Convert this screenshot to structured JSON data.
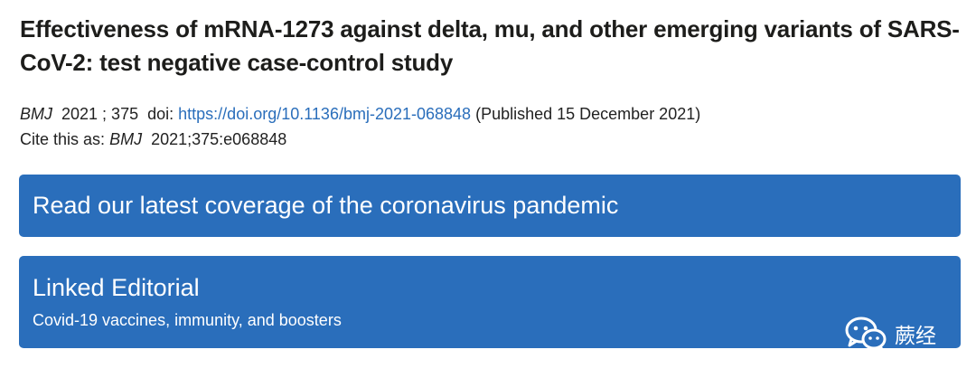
{
  "article": {
    "title": "Effectiveness of mRNA-1273 against delta, mu, and other emerging variants of SARS-CoV-2: test negative case-control study",
    "journal": "BMJ",
    "year_volume": "2021 ; 375",
    "doi_label": "doi:",
    "doi_url": "https://doi.org/10.1136/bmj-2021-068848",
    "published": "(Published 15 December 2021)",
    "cite_prefix": "Cite this as:",
    "cite_journal": "BMJ",
    "cite_ref": "2021;375:e068848"
  },
  "banners": {
    "coverage": "Read our latest coverage of the coronavirus pandemic",
    "editorial_heading": "Linked Editorial",
    "editorial_link": "Covid-19 vaccines, immunity, and boosters"
  },
  "watermark": {
    "icon": "wechat-icon",
    "label": "蕨经"
  },
  "colors": {
    "accent": "#2a6ebb",
    "title": "#1d1d1b",
    "text": "#222222"
  }
}
